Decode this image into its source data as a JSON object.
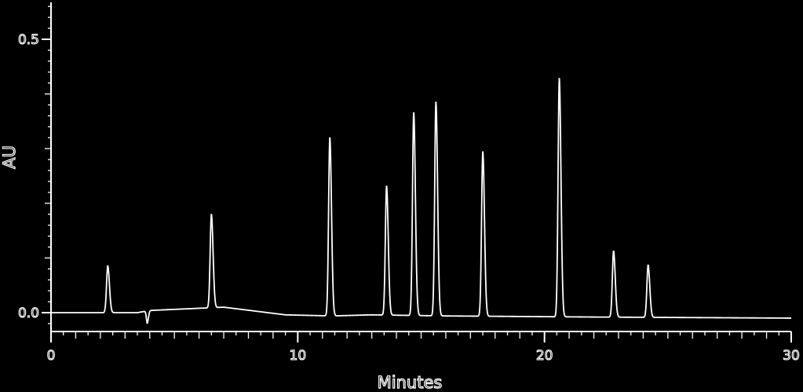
{
  "chart_data": {
    "type": "line",
    "title": "",
    "xlabel": "Minutes",
    "ylabel": "AU",
    "xlim": [
      0,
      30
    ],
    "ylim": [
      -0.04,
      0.56
    ],
    "x_ticks": [
      0,
      10,
      20,
      30
    ],
    "y_ticks": [
      0.0,
      0.5
    ],
    "x_tick_labels": [
      "0",
      "10",
      "20",
      "30"
    ],
    "y_tick_labels": [
      "0.0",
      "0.5"
    ],
    "grid": false,
    "legend": "none",
    "baseline": [
      [
        0,
        0.0
      ],
      [
        3.5,
        0.0
      ],
      [
        4.0,
        0.004
      ],
      [
        7.0,
        0.01
      ],
      [
        9.5,
        -0.004
      ],
      [
        11.4,
        -0.006
      ],
      [
        13.0,
        -0.004
      ],
      [
        16.0,
        -0.006
      ],
      [
        22.0,
        -0.008
      ],
      [
        30,
        -0.01
      ]
    ],
    "series": [
      {
        "name": "",
        "peaks": [
          {
            "rt": 2.3,
            "height": 0.085
          },
          {
            "rt": 3.9,
            "height": -0.022
          },
          {
            "rt": 6.5,
            "height": 0.17
          },
          {
            "rt": 11.3,
            "height": 0.325
          },
          {
            "rt": 13.6,
            "height": 0.235
          },
          {
            "rt": 14.7,
            "height": 0.37
          },
          {
            "rt": 15.6,
            "height": 0.39
          },
          {
            "rt": 17.5,
            "height": 0.3
          },
          {
            "rt": 20.6,
            "height": 0.435
          },
          {
            "rt": 22.8,
            "height": 0.12
          },
          {
            "rt": 24.2,
            "height": 0.095
          }
        ]
      }
    ]
  },
  "colors": {
    "background": "#000000",
    "trace": "#ffffff",
    "axis": "#ffffff"
  }
}
